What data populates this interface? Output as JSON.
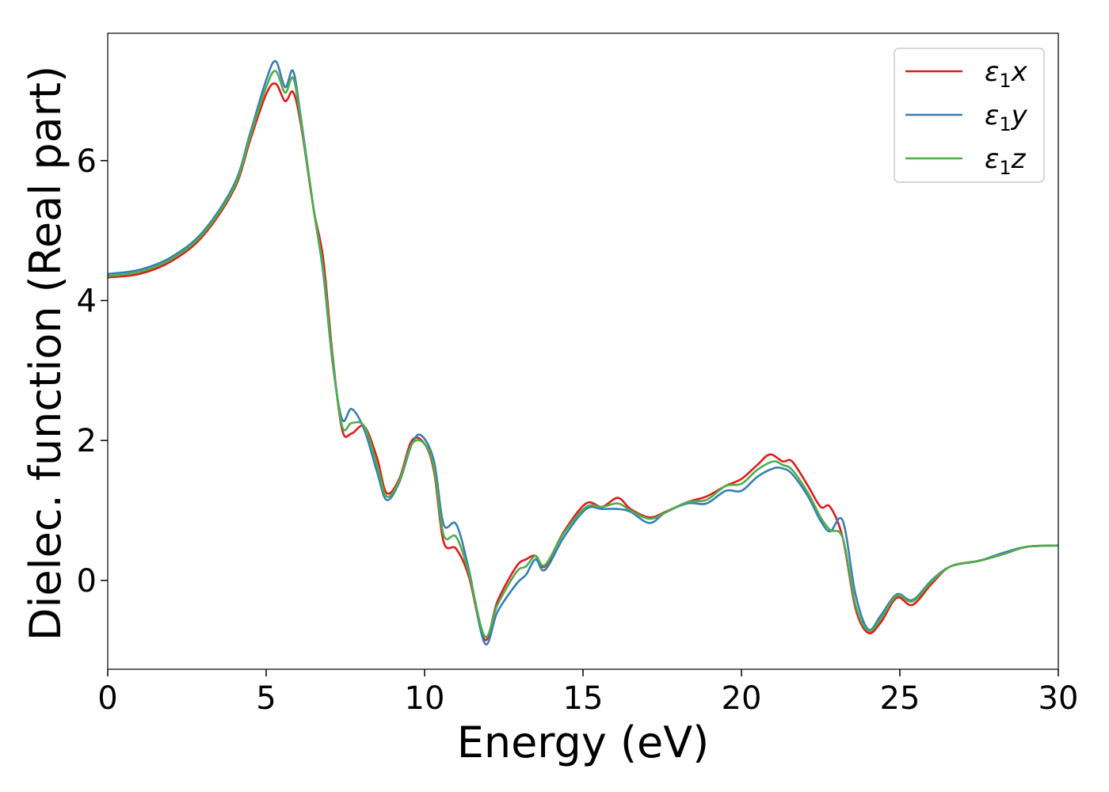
{
  "chart_data": {
    "type": "line",
    "title": "",
    "xlabel": "Energy (eV)",
    "ylabel": "Dielec. function (Real part)",
    "xlim": [
      0,
      30
    ],
    "ylim": [
      -1.27,
      7.82
    ],
    "xticks": [
      0,
      5,
      10,
      15,
      20,
      25,
      30
    ],
    "yticks": [
      0,
      2,
      4,
      6
    ],
    "grid": false,
    "legend_position": "top-right",
    "series": [
      {
        "name": "ε1x",
        "legend": {
          "base": "ε",
          "sub": "1",
          "suffix": "x"
        },
        "color": "#e41a1c",
        "points": [
          [
            0,
            4.33
          ],
          [
            1,
            4.38
          ],
          [
            2,
            4.56
          ],
          [
            3,
            4.92
          ],
          [
            4,
            5.6
          ],
          [
            4.5,
            6.3
          ],
          [
            5,
            6.95
          ],
          [
            5.3,
            7.1
          ],
          [
            5.6,
            6.85
          ],
          [
            5.85,
            6.98
          ],
          [
            6.1,
            6.5
          ],
          [
            6.5,
            5.3
          ],
          [
            6.8,
            4.6
          ],
          [
            7.1,
            3.2
          ],
          [
            7.4,
            2.15
          ],
          [
            7.7,
            2.1
          ],
          [
            8.1,
            2.2
          ],
          [
            8.5,
            1.75
          ],
          [
            8.8,
            1.25
          ],
          [
            9.2,
            1.45
          ],
          [
            9.6,
            2.0
          ],
          [
            10.0,
            1.95
          ],
          [
            10.3,
            1.55
          ],
          [
            10.6,
            0.55
          ],
          [
            11.0,
            0.45
          ],
          [
            11.4,
            0.05
          ],
          [
            11.9,
            -0.85
          ],
          [
            12.3,
            -0.3
          ],
          [
            12.9,
            0.2
          ],
          [
            13.2,
            0.3
          ],
          [
            13.5,
            0.35
          ],
          [
            13.8,
            0.2
          ],
          [
            14.4,
            0.7
          ],
          [
            15.1,
            1.1
          ],
          [
            15.6,
            1.05
          ],
          [
            16.1,
            1.18
          ],
          [
            16.5,
            1.02
          ],
          [
            17.1,
            0.9
          ],
          [
            17.6,
            0.98
          ],
          [
            18.3,
            1.12
          ],
          [
            18.9,
            1.2
          ],
          [
            19.5,
            1.35
          ],
          [
            20.0,
            1.45
          ],
          [
            20.5,
            1.65
          ],
          [
            20.9,
            1.8
          ],
          [
            21.3,
            1.7
          ],
          [
            21.6,
            1.7
          ],
          [
            22.1,
            1.35
          ],
          [
            22.5,
            1.05
          ],
          [
            22.8,
            1.05
          ],
          [
            23.2,
            0.6
          ],
          [
            23.6,
            -0.4
          ],
          [
            24.0,
            -0.75
          ],
          [
            24.4,
            -0.6
          ],
          [
            24.9,
            -0.25
          ],
          [
            25.4,
            -0.35
          ],
          [
            26.0,
            -0.05
          ],
          [
            26.6,
            0.2
          ],
          [
            27.5,
            0.28
          ],
          [
            28.3,
            0.38
          ],
          [
            29.0,
            0.48
          ],
          [
            30,
            0.5
          ]
        ]
      },
      {
        "name": "ε1y",
        "legend": {
          "base": "ε",
          "sub": "1",
          "suffix": "y"
        },
        "color": "#377eb8",
        "points": [
          [
            0,
            4.38
          ],
          [
            1,
            4.44
          ],
          [
            2,
            4.62
          ],
          [
            3,
            4.98
          ],
          [
            4,
            5.67
          ],
          [
            4.5,
            6.4
          ],
          [
            5,
            7.15
          ],
          [
            5.3,
            7.42
          ],
          [
            5.6,
            7.05
          ],
          [
            5.85,
            7.28
          ],
          [
            6.1,
            6.6
          ],
          [
            6.5,
            5.3
          ],
          [
            6.8,
            4.4
          ],
          [
            7.1,
            3.1
          ],
          [
            7.4,
            2.3
          ],
          [
            7.7,
            2.45
          ],
          [
            8.1,
            2.15
          ],
          [
            8.5,
            1.55
          ],
          [
            8.8,
            1.15
          ],
          [
            9.2,
            1.4
          ],
          [
            9.6,
            1.95
          ],
          [
            9.9,
            2.07
          ],
          [
            10.3,
            1.7
          ],
          [
            10.6,
            0.8
          ],
          [
            11.0,
            0.8
          ],
          [
            11.4,
            0.15
          ],
          [
            11.9,
            -0.9
          ],
          [
            12.3,
            -0.45
          ],
          [
            12.9,
            -0.05
          ],
          [
            13.2,
            0.08
          ],
          [
            13.5,
            0.3
          ],
          [
            13.8,
            0.15
          ],
          [
            14.4,
            0.62
          ],
          [
            15.1,
            1.02
          ],
          [
            15.6,
            1.02
          ],
          [
            16.1,
            1.02
          ],
          [
            16.5,
            0.98
          ],
          [
            17.1,
            0.82
          ],
          [
            17.6,
            0.97
          ],
          [
            18.3,
            1.1
          ],
          [
            18.9,
            1.1
          ],
          [
            19.5,
            1.28
          ],
          [
            20.0,
            1.28
          ],
          [
            20.5,
            1.48
          ],
          [
            21.0,
            1.6
          ],
          [
            21.3,
            1.6
          ],
          [
            21.6,
            1.52
          ],
          [
            22.1,
            1.2
          ],
          [
            22.5,
            0.85
          ],
          [
            22.8,
            0.7
          ],
          [
            23.2,
            0.85
          ],
          [
            23.6,
            -0.2
          ],
          [
            24.0,
            -0.7
          ],
          [
            24.4,
            -0.5
          ],
          [
            24.9,
            -0.2
          ],
          [
            25.4,
            -0.28
          ],
          [
            26.0,
            0.0
          ],
          [
            26.6,
            0.2
          ],
          [
            27.5,
            0.28
          ],
          [
            28.3,
            0.4
          ],
          [
            29.0,
            0.48
          ],
          [
            30,
            0.5
          ]
        ]
      },
      {
        "name": "ε1z",
        "legend": {
          "base": "ε",
          "sub": "1",
          "suffix": "z"
        },
        "color": "#4daf4a",
        "points": [
          [
            0,
            4.35
          ],
          [
            1,
            4.41
          ],
          [
            2,
            4.59
          ],
          [
            3,
            4.95
          ],
          [
            4,
            5.63
          ],
          [
            4.5,
            6.35
          ],
          [
            5,
            7.05
          ],
          [
            5.3,
            7.28
          ],
          [
            5.6,
            6.97
          ],
          [
            5.85,
            7.18
          ],
          [
            6.1,
            6.55
          ],
          [
            6.5,
            5.3
          ],
          [
            6.8,
            4.45
          ],
          [
            7.1,
            3.15
          ],
          [
            7.4,
            2.2
          ],
          [
            7.7,
            2.25
          ],
          [
            8.1,
            2.2
          ],
          [
            8.5,
            1.65
          ],
          [
            8.8,
            1.2
          ],
          [
            9.2,
            1.42
          ],
          [
            9.6,
            1.95
          ],
          [
            10.0,
            1.95
          ],
          [
            10.3,
            1.6
          ],
          [
            10.6,
            0.65
          ],
          [
            11.0,
            0.62
          ],
          [
            11.4,
            0.1
          ],
          [
            11.9,
            -0.8
          ],
          [
            12.3,
            -0.35
          ],
          [
            12.9,
            0.12
          ],
          [
            13.2,
            0.2
          ],
          [
            13.5,
            0.35
          ],
          [
            13.8,
            0.22
          ],
          [
            14.4,
            0.68
          ],
          [
            15.1,
            1.05
          ],
          [
            15.6,
            1.05
          ],
          [
            16.1,
            1.1
          ],
          [
            16.5,
            1.0
          ],
          [
            17.1,
            0.88
          ],
          [
            17.6,
            0.97
          ],
          [
            18.3,
            1.12
          ],
          [
            18.9,
            1.15
          ],
          [
            19.5,
            1.35
          ],
          [
            20.0,
            1.38
          ],
          [
            20.5,
            1.58
          ],
          [
            21.0,
            1.7
          ],
          [
            21.3,
            1.65
          ],
          [
            21.6,
            1.58
          ],
          [
            22.1,
            1.25
          ],
          [
            22.5,
            0.9
          ],
          [
            22.8,
            0.72
          ],
          [
            23.2,
            0.6
          ],
          [
            23.6,
            -0.35
          ],
          [
            24.0,
            -0.72
          ],
          [
            24.4,
            -0.55
          ],
          [
            24.9,
            -0.22
          ],
          [
            25.4,
            -0.3
          ],
          [
            26.0,
            -0.02
          ],
          [
            26.6,
            0.2
          ],
          [
            27.5,
            0.28
          ],
          [
            28.3,
            0.38
          ],
          [
            29.0,
            0.48
          ],
          [
            30,
            0.5
          ]
        ]
      }
    ]
  }
}
